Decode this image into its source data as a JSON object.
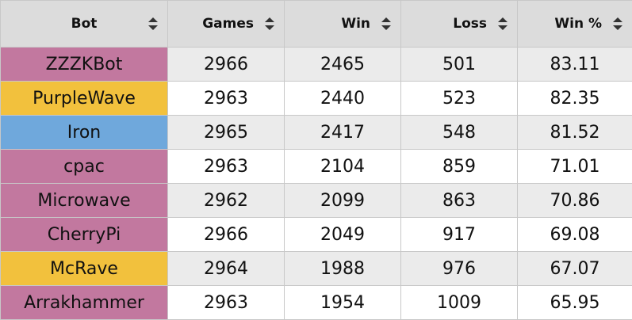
{
  "colors": {
    "zerg": "#c2789f",
    "protoss": "#f2c13d",
    "terran": "#6fa8dc",
    "header_bg": "#dcdcdc",
    "row_alt_bg": "#ebebeb"
  },
  "table": {
    "headers": {
      "bot": "Bot",
      "games": "Games",
      "win": "Win",
      "loss": "Loss",
      "win_pct": "Win %"
    },
    "rows": [
      {
        "bot": "ZZZKBot",
        "race_color": "#c2789f",
        "games": "2966",
        "win": "2465",
        "loss": "501",
        "win_pct": "83.11"
      },
      {
        "bot": "PurpleWave",
        "race_color": "#f2c13d",
        "games": "2963",
        "win": "2440",
        "loss": "523",
        "win_pct": "82.35"
      },
      {
        "bot": "Iron",
        "race_color": "#6fa8dc",
        "games": "2965",
        "win": "2417",
        "loss": "548",
        "win_pct": "81.52"
      },
      {
        "bot": "cpac",
        "race_color": "#c2789f",
        "games": "2963",
        "win": "2104",
        "loss": "859",
        "win_pct": "71.01"
      },
      {
        "bot": "Microwave",
        "race_color": "#c2789f",
        "games": "2962",
        "win": "2099",
        "loss": "863",
        "win_pct": "70.86"
      },
      {
        "bot": "CherryPi",
        "race_color": "#c2789f",
        "games": "2966",
        "win": "2049",
        "loss": "917",
        "win_pct": "69.08"
      },
      {
        "bot": "McRave",
        "race_color": "#f2c13d",
        "games": "2964",
        "win": "1988",
        "loss": "976",
        "win_pct": "67.07"
      },
      {
        "bot": "Arrakhammer",
        "race_color": "#c2789f",
        "games": "2963",
        "win": "1954",
        "loss": "1009",
        "win_pct": "65.95"
      }
    ]
  }
}
